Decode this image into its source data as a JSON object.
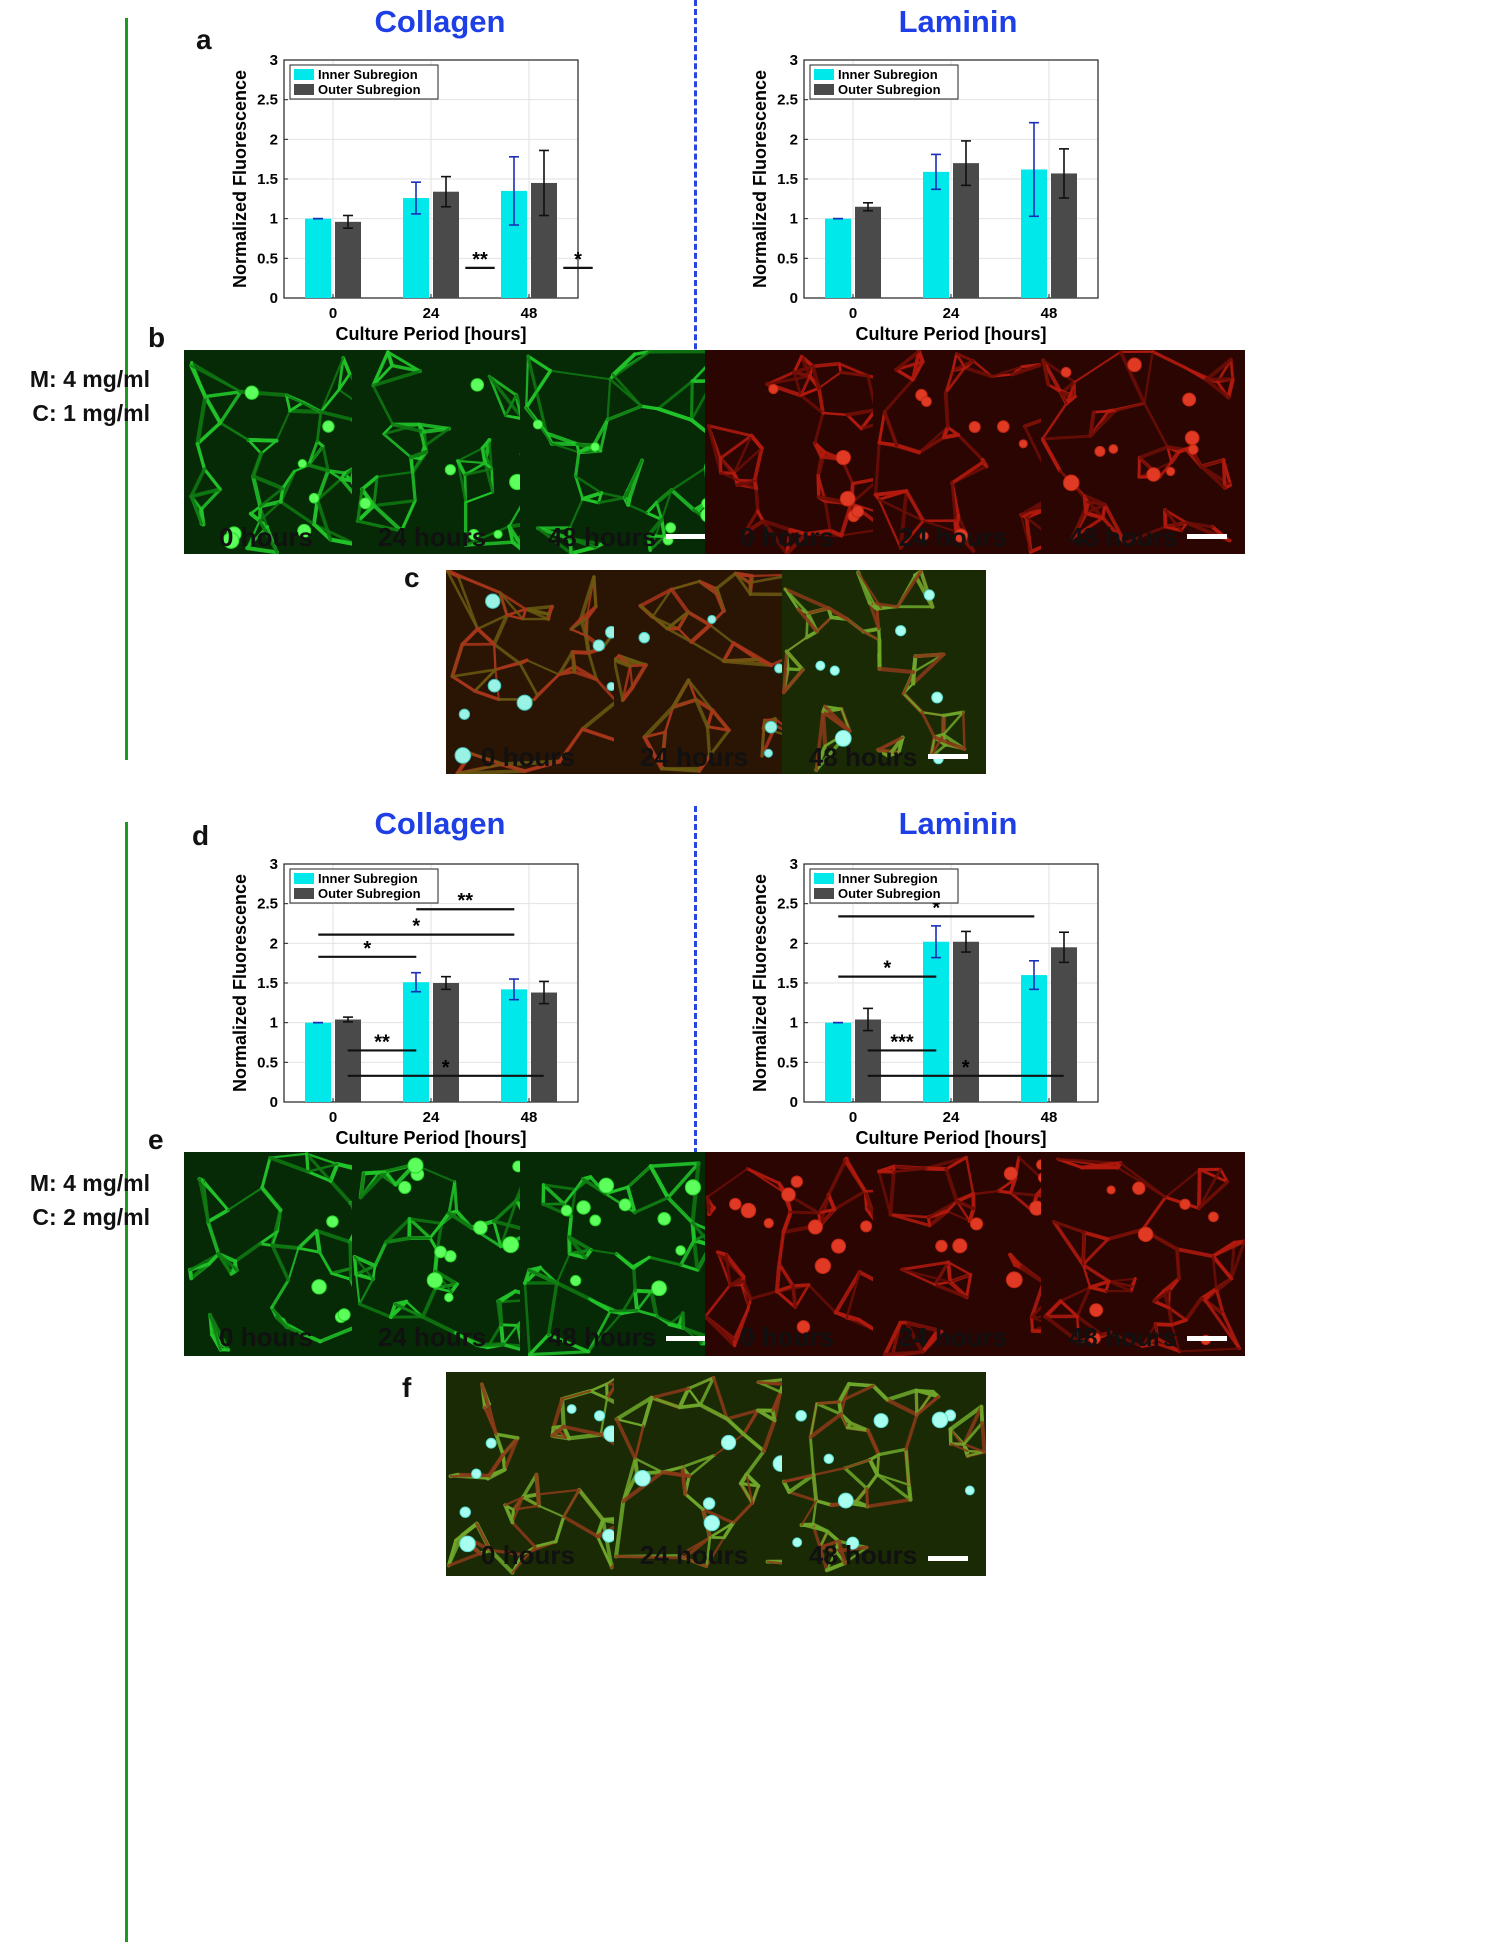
{
  "conditions": [
    {
      "m": "M: 4 mg/ml",
      "c": "C: 1 mg/ml"
    },
    {
      "m": "M: 4 mg/ml",
      "c": "C: 2 mg/ml"
    }
  ],
  "column_headers": {
    "collagen": "Collagen",
    "laminin": "Laminin"
  },
  "panel_labels": {
    "a": "a",
    "b": "b",
    "c": "c",
    "d": "d",
    "e": "e",
    "f": "f"
  },
  "time_captions": [
    "0 hours",
    "24 hours",
    "48 hours"
  ],
  "colors": {
    "inner": "#00e8ea",
    "outer": "#4a4a4a",
    "inner_err": "#1a2fb8",
    "outer_err": "#111111",
    "collagen_img": "#22c52a",
    "laminin_img": "#b41a0e"
  },
  "chart_data": [
    {
      "id": "a-collagen",
      "type": "bar",
      "title": "",
      "xlabel": "Culture Period [hours]",
      "ylabel": "Normalized Fluorescence",
      "categories": [
        "0",
        "24",
        "48"
      ],
      "ylim": [
        0,
        3
      ],
      "yticks": [
        "0",
        "0.5",
        "1",
        "1.5",
        "2",
        "2.5",
        "3"
      ],
      "legend": [
        "Inner Subregion",
        "Outer Subregion"
      ],
      "series": [
        {
          "name": "Inner Subregion",
          "values": [
            1.0,
            1.26,
            1.35
          ],
          "errors": [
            0.0,
            0.2,
            0.43
          ]
        },
        {
          "name": "Outer Subregion",
          "values": [
            0.96,
            1.34,
            1.45
          ],
          "errors": [
            0.08,
            0.19,
            0.41
          ]
        }
      ],
      "annotations": [
        {
          "text": "**",
          "y": 0.38,
          "from": [
            1,
            0.35
          ],
          "to": [
            1,
            0.65
          ]
        },
        {
          "text": "*",
          "y": 0.38,
          "from": [
            2,
            0.35
          ],
          "to": [
            2,
            0.65
          ]
        }
      ]
    },
    {
      "id": "a-laminin",
      "type": "bar",
      "title": "",
      "xlabel": "Culture Period [hours]",
      "ylabel": "Normalized Fluorescence",
      "categories": [
        "0",
        "24",
        "48"
      ],
      "ylim": [
        0,
        3
      ],
      "yticks": [
        "0",
        "0.5",
        "1",
        "1.5",
        "2",
        "2.5",
        "3"
      ],
      "legend": [
        "Inner Subregion",
        "Outer Subregion"
      ],
      "series": [
        {
          "name": "Inner Subregion",
          "values": [
            1.0,
            1.59,
            1.62
          ],
          "errors": [
            0.0,
            0.22,
            0.59
          ]
        },
        {
          "name": "Outer Subregion",
          "values": [
            1.15,
            1.7,
            1.57
          ],
          "errors": [
            0.05,
            0.28,
            0.31
          ]
        }
      ],
      "annotations": []
    },
    {
      "id": "d-collagen",
      "type": "bar",
      "title": "",
      "xlabel": "Culture Period [hours]",
      "ylabel": "Normalized Fluorescence",
      "categories": [
        "0",
        "24",
        "48"
      ],
      "ylim": [
        0,
        3
      ],
      "yticks": [
        "0",
        "0.5",
        "1",
        "1.5",
        "2",
        "2.5",
        "3"
      ],
      "legend": [
        "Inner Subregion",
        "Outer Subregion"
      ],
      "series": [
        {
          "name": "Inner Subregion",
          "values": [
            1.0,
            1.51,
            1.42
          ],
          "errors": [
            0.0,
            0.12,
            0.13
          ]
        },
        {
          "name": "Outer Subregion",
          "values": [
            1.04,
            1.5,
            1.38
          ],
          "errors": [
            0.03,
            0.08,
            0.14
          ]
        }
      ],
      "annotations": [
        {
          "text": "**",
          "y": 2.43,
          "from": [
            1,
            -0.15
          ],
          "to": [
            2,
            -0.15
          ]
        },
        {
          "text": "*",
          "y": 2.11,
          "from": [
            0,
            -0.15
          ],
          "to": [
            2,
            -0.15
          ]
        },
        {
          "text": "*",
          "y": 1.83,
          "from": [
            0,
            -0.15
          ],
          "to": [
            1,
            -0.15
          ]
        },
        {
          "text": "**",
          "y": 0.65,
          "from": [
            0,
            0.15
          ],
          "to": [
            1,
            -0.15
          ]
        },
        {
          "text": "*",
          "y": 0.33,
          "from": [
            0,
            0.15
          ],
          "to": [
            2,
            0.15
          ]
        }
      ]
    },
    {
      "id": "d-laminin",
      "type": "bar",
      "title": "",
      "xlabel": "Culture Period [hours]",
      "ylabel": "Normalized Fluorescence",
      "categories": [
        "0",
        "24",
        "48"
      ],
      "ylim": [
        0,
        3
      ],
      "yticks": [
        "0",
        "0.5",
        "1",
        "1.5",
        "2",
        "2.5",
        "3"
      ],
      "legend": [
        "Inner Subregion",
        "Outer Subregion"
      ],
      "series": [
        {
          "name": "Inner Subregion",
          "values": [
            1.0,
            2.02,
            1.6
          ],
          "errors": [
            0.0,
            0.2,
            0.18
          ]
        },
        {
          "name": "Outer Subregion",
          "values": [
            1.04,
            2.02,
            1.95
          ],
          "errors": [
            0.14,
            0.13,
            0.19
          ]
        }
      ],
      "annotations": [
        {
          "text": "*",
          "y": 2.34,
          "from": [
            0,
            -0.15
          ],
          "to": [
            2,
            -0.15
          ]
        },
        {
          "text": "*",
          "y": 1.58,
          "from": [
            0,
            -0.15
          ],
          "to": [
            1,
            -0.15
          ]
        },
        {
          "text": "***",
          "y": 0.65,
          "from": [
            0,
            0.15
          ],
          "to": [
            1,
            -0.15
          ]
        },
        {
          "text": "*",
          "y": 0.33,
          "from": [
            0,
            0.15
          ],
          "to": [
            2,
            0.15
          ]
        }
      ]
    }
  ]
}
